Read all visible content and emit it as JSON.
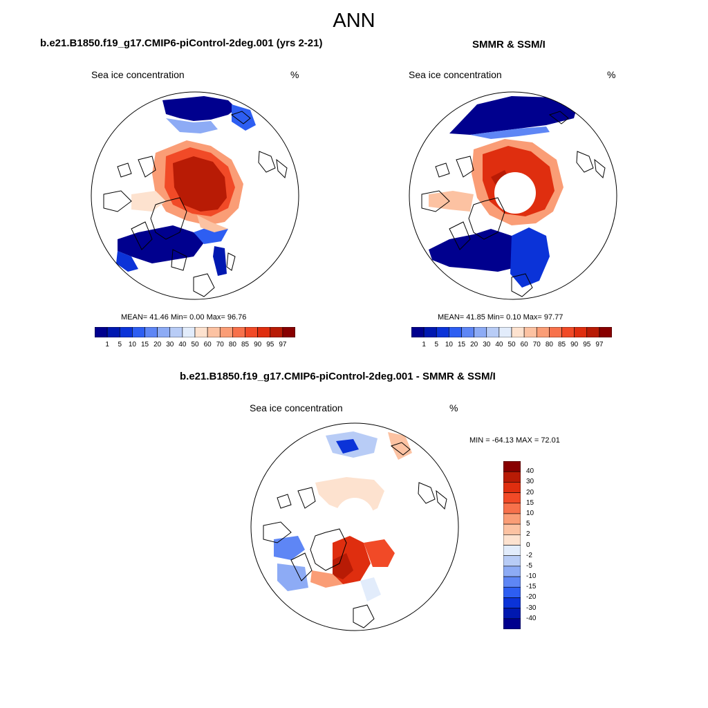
{
  "main_title": "ANN",
  "panel1": {
    "title": "b.e21.B1850.f19_g17.CMIP6-piControl-2deg.001 (yrs 2-21)",
    "left_label": "Sea ice concentration",
    "right_label": "%",
    "stats": {
      "mean_label": "MEAN=",
      "mean": "41.46",
      "min_label": "Min=",
      "min": "0.00",
      "max_label": "Max=",
      "max": "96.76"
    }
  },
  "panel2": {
    "title": "SMMR & SSM/I",
    "left_label": "Sea ice concentration",
    "right_label": "%",
    "stats": {
      "mean_label": "MEAN=",
      "mean": "41.85",
      "min_label": "Min=",
      "min": "0.10",
      "max_label": "Max=",
      "max": "97.77"
    }
  },
  "panel3": {
    "title": "b.e21.B1850.f19_g17.CMIP6-piControl-2deg.001 - SMMR & SSM/I",
    "left_label": "Sea ice concentration",
    "right_label": "%",
    "minmax": "MIN = -64.13 MAX =  72.01"
  },
  "chart_data": [
    {
      "type": "heatmap",
      "title": "b.e21.B1850.f19_g17.CMIP6-piControl-2deg.001 (yrs 2-21)",
      "variable": "Sea ice concentration",
      "units": "%",
      "mean": 41.46,
      "min": 0.0,
      "max": 96.76,
      "levels": [
        1,
        5,
        10,
        15,
        20,
        30,
        40,
        50,
        60,
        70,
        80,
        85,
        90,
        95,
        97
      ]
    },
    {
      "type": "heatmap",
      "title": "SMMR & SSM/I",
      "variable": "Sea ice concentration",
      "units": "%",
      "mean": 41.85,
      "min": 0.1,
      "max": 97.77,
      "levels": [
        1,
        5,
        10,
        15,
        20,
        30,
        40,
        50,
        60,
        70,
        80,
        85,
        90,
        95,
        97
      ]
    },
    {
      "type": "heatmap",
      "title": "b.e21.B1850.f19_g17.CMIP6-piControl-2deg.001 - SMMR & SSM/I",
      "variable": "Sea ice concentration",
      "units": "%",
      "min": -64.13,
      "max": 72.01,
      "levels": [
        40,
        30,
        20,
        15,
        10,
        5,
        2,
        0,
        -2,
        -5,
        -10,
        -15,
        -20,
        -30,
        -40
      ]
    }
  ],
  "colors": {
    "ice_scale": [
      "#00008e",
      "#0018b0",
      "#0b33d8",
      "#2d5ef2",
      "#5e86f5",
      "#8dabf5",
      "#b8ccf6",
      "#e2ecfb",
      "#fde2cf",
      "#fcc2a2",
      "#fa9d76",
      "#f7714b",
      "#f14a27",
      "#df2e0f",
      "#b81b05",
      "#880000"
    ],
    "diff_scale": [
      "#880000",
      "#b81b05",
      "#df2e0f",
      "#f14a27",
      "#f7714b",
      "#fa9d76",
      "#fcc2a2",
      "#fde2cf",
      "#e2ecfb",
      "#b8ccf6",
      "#8dabf5",
      "#5e86f5",
      "#2d5ef2",
      "#0b33d8",
      "#0018b0",
      "#00008e"
    ],
    "land_outline": "#000000"
  }
}
